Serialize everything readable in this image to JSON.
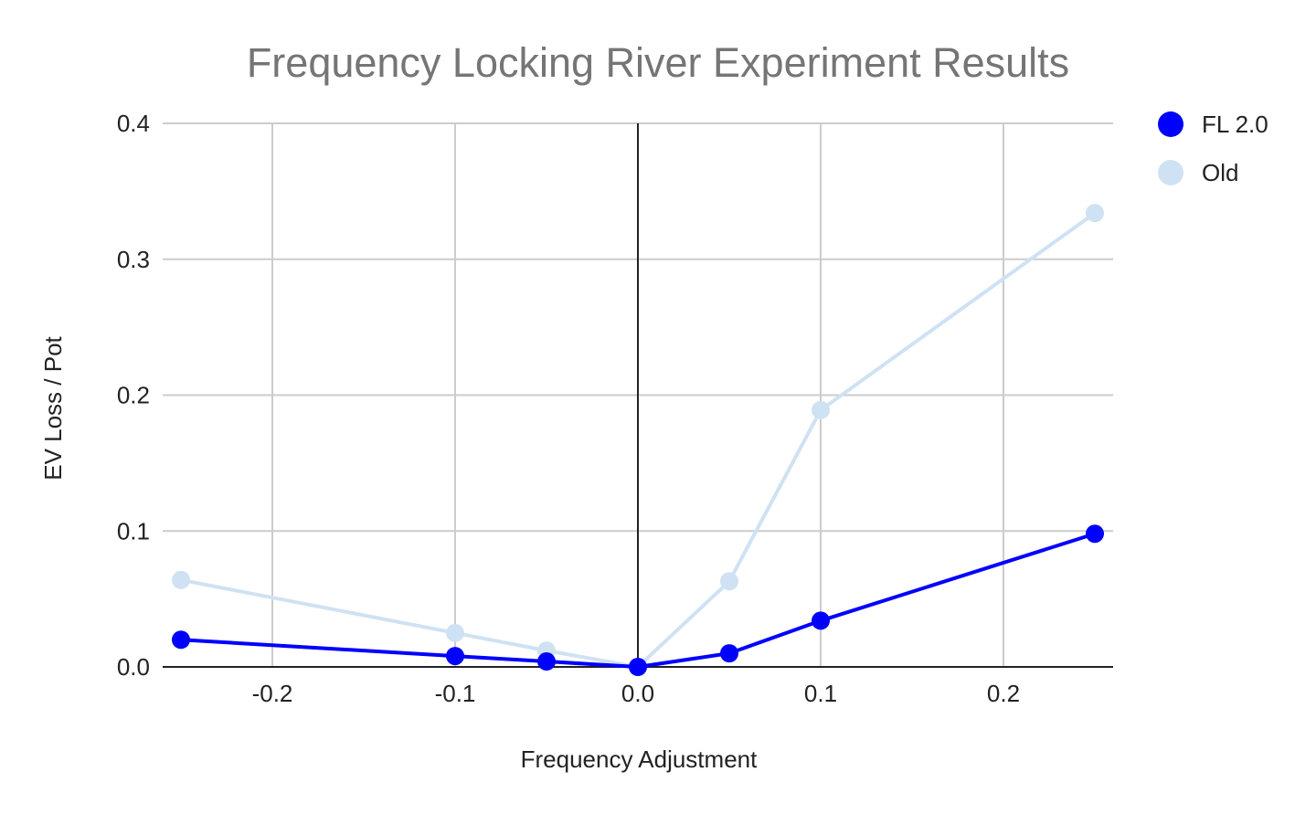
{
  "chart_data": {
    "type": "line",
    "title": "Frequency Locking River Experiment Results",
    "xlabel": "Frequency Adjustment",
    "ylabel": "EV Loss / Pot",
    "xlim": [
      -0.26,
      0.26
    ],
    "ylim": [
      0,
      0.4
    ],
    "x_ticks": [
      "-0.2",
      "-0.1",
      "0.0",
      "0.1",
      "0.2"
    ],
    "y_ticks": [
      "0.0",
      "0.1",
      "0.2",
      "0.3",
      "0.4"
    ],
    "grid": true,
    "legend_position": "right",
    "x": [
      -0.25,
      -0.1,
      -0.05,
      0.0,
      0.05,
      0.1,
      0.25
    ],
    "series": [
      {
        "name": "Old",
        "color": "#cfe2f3",
        "values": [
          0.064,
          0.025,
          0.012,
          0.0,
          0.063,
          0.189,
          0.334
        ]
      },
      {
        "name": "FL 2.0",
        "color": "#0000ff",
        "values": [
          0.02,
          0.008,
          0.004,
          0.0,
          0.01,
          0.034,
          0.098
        ]
      }
    ],
    "legend_order": [
      "FL 2.0",
      "Old"
    ]
  }
}
